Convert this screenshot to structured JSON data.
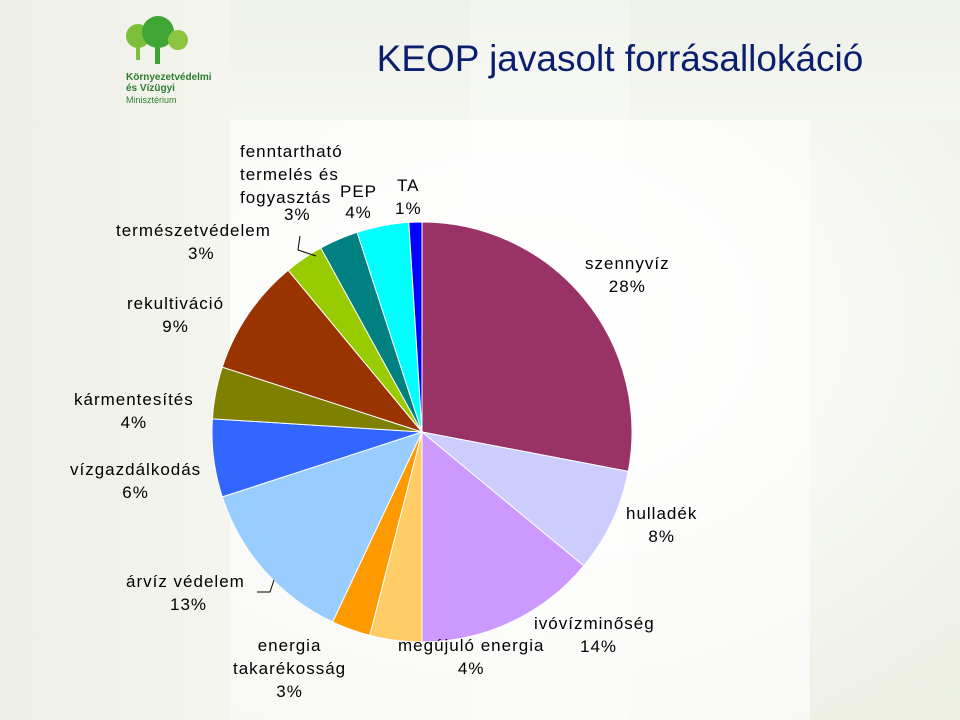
{
  "title": "KEOP javasolt forrásallokáció",
  "logo": {
    "line1": "Környezetvédelmi",
    "line2": "és Vízügyi",
    "line3": "Minisztérium"
  },
  "chart_data": {
    "type": "pie",
    "title": "KEOP javasolt forrásallokáció",
    "start_angle_deg": 0,
    "direction": "clockwise",
    "slices": [
      {
        "label": "szennyvíz",
        "value": 28,
        "value_label": "28%",
        "color": "#993366"
      },
      {
        "label": "hulladék",
        "value": 8,
        "value_label": "8%",
        "color": "#ccccff"
      },
      {
        "label": "ivóvízminőség",
        "value": 14,
        "value_label": "14%",
        "color": "#cc99ff"
      },
      {
        "label": "megújuló energia",
        "value": 4,
        "value_label": "4%",
        "color": "#ffcc66"
      },
      {
        "label": "energia takarékosság",
        "value": 3,
        "value_label": "3%",
        "color": "#ff9900"
      },
      {
        "label": "árvíz védelem",
        "value": 13,
        "value_label": "13%",
        "color": "#99ccff"
      },
      {
        "label": "vízgazdálkodás",
        "value": 6,
        "value_label": "6%",
        "color": "#3366ff"
      },
      {
        "label": "kármentesítés",
        "value": 4,
        "value_label": "4%",
        "color": "#808000"
      },
      {
        "label": "rekultiváció",
        "value": 9,
        "value_label": "9%",
        "color": "#993300"
      },
      {
        "label": "természetvédelem",
        "value": 3,
        "value_label": "3%",
        "color": "#99cc00"
      },
      {
        "label": "fenntartható termelés és fogyasztás",
        "value": 3,
        "value_label": "3%",
        "color": "#008080"
      },
      {
        "label": "PEP",
        "value": 4,
        "value_label": "4%",
        "color": "#00ffff"
      },
      {
        "label": "TA",
        "value": 1,
        "value_label": "1%",
        "color": "#0000ff"
      }
    ],
    "labels_text": {
      "szennyviz_1": "szennyvíz",
      "szennyviz_2": "28%",
      "hulladek_1": "hulladék",
      "hulladek_2": "8%",
      "ivoviz_1": "ivóvízminőség",
      "ivoviz_2": "14%",
      "megujulo_1": "megújuló energia",
      "megujulo_2": "4%",
      "energia_1": "energia",
      "energia_2": "takarékosság",
      "energia_3": "3%",
      "arviz_1": "árvíz védelem",
      "arviz_2": "13%",
      "vizgazd_1": "vízgazdálkodás",
      "vizgazd_2": "6%",
      "karment_1": "kármentesítés",
      "karment_2": "4%",
      "rekult_1": "rekultiváció",
      "rekult_2": "9%",
      "termv_1": "természetvédelem",
      "termv_2": "3%",
      "fennt_1": "fenntartható",
      "fennt_2": "termelés és",
      "fennt_3": "fogyasztás",
      "fennt_4": "3%",
      "pep_1": "PEP",
      "pep_2": "4%",
      "ta_1": "TA",
      "ta_2": "1%"
    },
    "legend": "none"
  }
}
